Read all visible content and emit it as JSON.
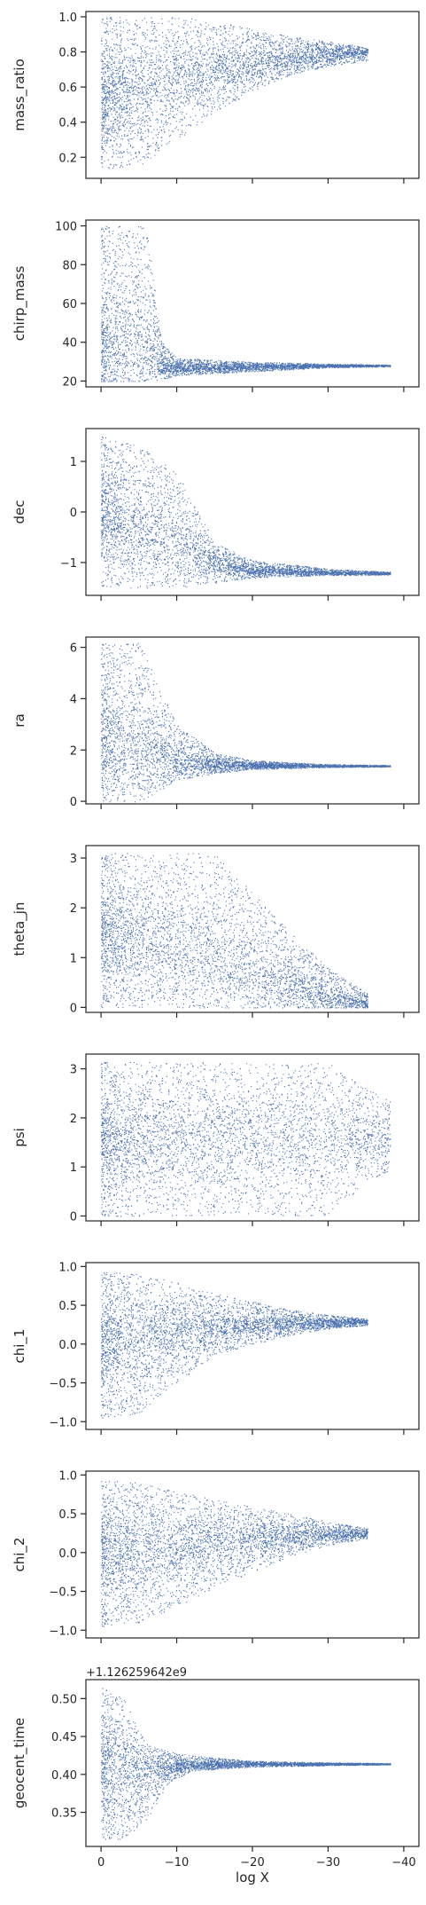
{
  "chart_data": {
    "type": "scatter",
    "layout": "vertical-stack",
    "shared_x": true,
    "xlabel": "log X",
    "x_range": [
      2,
      -42
    ],
    "x_ticks": [
      0,
      -10,
      -20,
      -30,
      -40
    ],
    "x_tick_labels": [
      "0",
      "−10",
      "−20",
      "−30",
      "−40"
    ],
    "grid": false,
    "point_color": "#4c72b0",
    "panels": [
      {
        "ylabel": "mass_ratio",
        "ylim": [
          0.08,
          1.03
        ],
        "yticks": [
          0.2,
          0.4,
          0.6,
          0.8,
          1.0
        ],
        "ytick_labels": [
          "0.2",
          "0.4",
          "0.6",
          "0.8",
          "1.0"
        ],
        "trend": {
          "x": [
            0,
            -5,
            -10,
            -15,
            -20,
            -25,
            -30,
            -35
          ],
          "center": [
            0.55,
            0.6,
            0.65,
            0.7,
            0.74,
            0.77,
            0.79,
            0.8
          ],
          "lower": [
            0.13,
            0.15,
            0.3,
            0.45,
            0.58,
            0.67,
            0.72,
            0.75
          ],
          "upper": [
            1.0,
            1.0,
            1.0,
            0.98,
            0.93,
            0.89,
            0.86,
            0.83
          ]
        }
      },
      {
        "ylabel": "chirp_mass",
        "ylim": [
          17,
          103
        ],
        "yticks": [
          20,
          40,
          60,
          80,
          100
        ],
        "ytick_labels": [
          "20",
          "40",
          "60",
          "80",
          "100"
        ],
        "trend": {
          "x": [
            0,
            -3,
            -6,
            -8,
            -10,
            -20,
            -30,
            -38
          ],
          "center": [
            40,
            42,
            40,
            27,
            27,
            27.5,
            28,
            28
          ],
          "lower": [
            20,
            20,
            20,
            21,
            23,
            25,
            27,
            27.5
          ],
          "upper": [
            100,
            100,
            100,
            40,
            32,
            30,
            29,
            28.5
          ]
        }
      },
      {
        "ylabel": "dec",
        "ylim": [
          -1.65,
          1.65
        ],
        "yticks": [
          -1,
          0,
          1
        ],
        "ytick_labels": [
          "−1",
          "0",
          "1"
        ],
        "trend": {
          "x": [
            0,
            -5,
            -10,
            -15,
            -20,
            -30,
            -38
          ],
          "center": [
            0.0,
            -0.3,
            -0.6,
            -1.0,
            -1.15,
            -1.2,
            -1.22
          ],
          "lower": [
            -1.5,
            -1.5,
            -1.5,
            -1.4,
            -1.3,
            -1.25,
            -1.24
          ],
          "upper": [
            1.5,
            1.3,
            0.8,
            -0.6,
            -0.95,
            -1.12,
            -1.18
          ]
        }
      },
      {
        "ylabel": "ra",
        "ylim": [
          -0.1,
          6.4
        ],
        "yticks": [
          0,
          2,
          4,
          6
        ],
        "ytick_labels": [
          "0",
          "2",
          "4",
          "6"
        ],
        "trend": {
          "x": [
            0,
            -5,
            -10,
            -15,
            -20,
            -30,
            -38
          ],
          "center": [
            2.5,
            2.0,
            1.5,
            1.45,
            1.4,
            1.38,
            1.38
          ],
          "lower": [
            0.0,
            0.0,
            0.8,
            1.1,
            1.25,
            1.33,
            1.35
          ],
          "upper": [
            6.2,
            6.2,
            3.0,
            1.9,
            1.6,
            1.45,
            1.42
          ]
        }
      },
      {
        "ylabel": "theta_jn",
        "ylim": [
          -0.1,
          3.25
        ],
        "yticks": [
          0,
          1,
          2,
          3
        ],
        "ytick_labels": [
          "0",
          "1",
          "2",
          "3"
        ],
        "trend": {
          "x": [
            0,
            -5,
            -10,
            -15,
            -20,
            -25,
            -30,
            -35
          ],
          "center": [
            1.5,
            1.4,
            1.2,
            1.0,
            0.7,
            0.45,
            0.2,
            0.05
          ],
          "lower": [
            0.0,
            0.0,
            0.0,
            0.0,
            0.0,
            0.0,
            0.0,
            0.0
          ],
          "upper": [
            3.1,
            3.1,
            3.1,
            3.1,
            2.3,
            1.5,
            0.8,
            0.3
          ]
        }
      },
      {
        "ylabel": "psi",
        "ylim": [
          -0.1,
          3.3
        ],
        "yticks": [
          0,
          1,
          2,
          3
        ],
        "ytick_labels": [
          "0",
          "1",
          "2",
          "3"
        ],
        "trend": {
          "x": [
            0,
            -10,
            -20,
            -30,
            -35,
            -38
          ],
          "center": [
            1.57,
            1.57,
            1.57,
            1.57,
            1.5,
            1.5
          ],
          "lower": [
            0.0,
            0.0,
            0.0,
            0.0,
            0.7,
            0.9
          ],
          "upper": [
            3.14,
            3.14,
            3.14,
            3.14,
            2.6,
            2.4
          ]
        }
      },
      {
        "ylabel": "chi_1",
        "ylim": [
          -1.1,
          1.05
        ],
        "yticks": [
          -1.0,
          -0.5,
          0.0,
          0.5,
          1.0
        ],
        "ytick_labels": [
          "−1.0",
          "−0.5",
          "0.0",
          "0.5",
          "1.0"
        ],
        "trend": {
          "x": [
            0,
            -5,
            -10,
            -15,
            -20,
            -25,
            -30,
            -35
          ],
          "center": [
            0.0,
            0.05,
            0.15,
            0.2,
            0.24,
            0.26,
            0.28,
            0.29
          ],
          "lower": [
            -0.95,
            -0.9,
            -0.5,
            -0.15,
            0.0,
            0.12,
            0.2,
            0.24
          ],
          "upper": [
            0.95,
            0.9,
            0.8,
            0.65,
            0.55,
            0.45,
            0.38,
            0.33
          ]
        }
      },
      {
        "ylabel": "chi_2",
        "ylim": [
          -1.1,
          1.05
        ],
        "yticks": [
          -1.0,
          -0.5,
          0.0,
          0.5,
          1.0
        ],
        "ytick_labels": [
          "−1.0",
          "−0.5",
          "0.0",
          "0.5",
          "1.0"
        ],
        "trend": {
          "x": [
            0,
            -5,
            -10,
            -15,
            -20,
            -25,
            -30,
            -35
          ],
          "center": [
            0.0,
            0.05,
            0.1,
            0.15,
            0.2,
            0.22,
            0.24,
            0.25
          ],
          "lower": [
            -0.95,
            -0.9,
            -0.7,
            -0.45,
            -0.25,
            -0.05,
            0.1,
            0.18
          ],
          "upper": [
            0.95,
            0.9,
            0.8,
            0.7,
            0.6,
            0.5,
            0.4,
            0.32
          ]
        }
      },
      {
        "ylabel": "geocent_time",
        "offset_label": "+1.126259642e9",
        "ylim": [
          0.305,
          0.525
        ],
        "yticks": [
          0.35,
          0.4,
          0.45,
          0.5
        ],
        "ytick_labels": [
          "0.35",
          "0.40",
          "0.45",
          "0.50"
        ],
        "trend": {
          "x": [
            0,
            -3,
            -6,
            -9,
            -12,
            -20,
            -30,
            -38
          ],
          "center": [
            0.41,
            0.4,
            0.405,
            0.41,
            0.413,
            0.414,
            0.414,
            0.414
          ],
          "lower": [
            0.315,
            0.315,
            0.34,
            0.39,
            0.405,
            0.41,
            0.412,
            0.413
          ],
          "upper": [
            0.515,
            0.5,
            0.44,
            0.43,
            0.425,
            0.418,
            0.416,
            0.415
          ]
        }
      }
    ]
  }
}
